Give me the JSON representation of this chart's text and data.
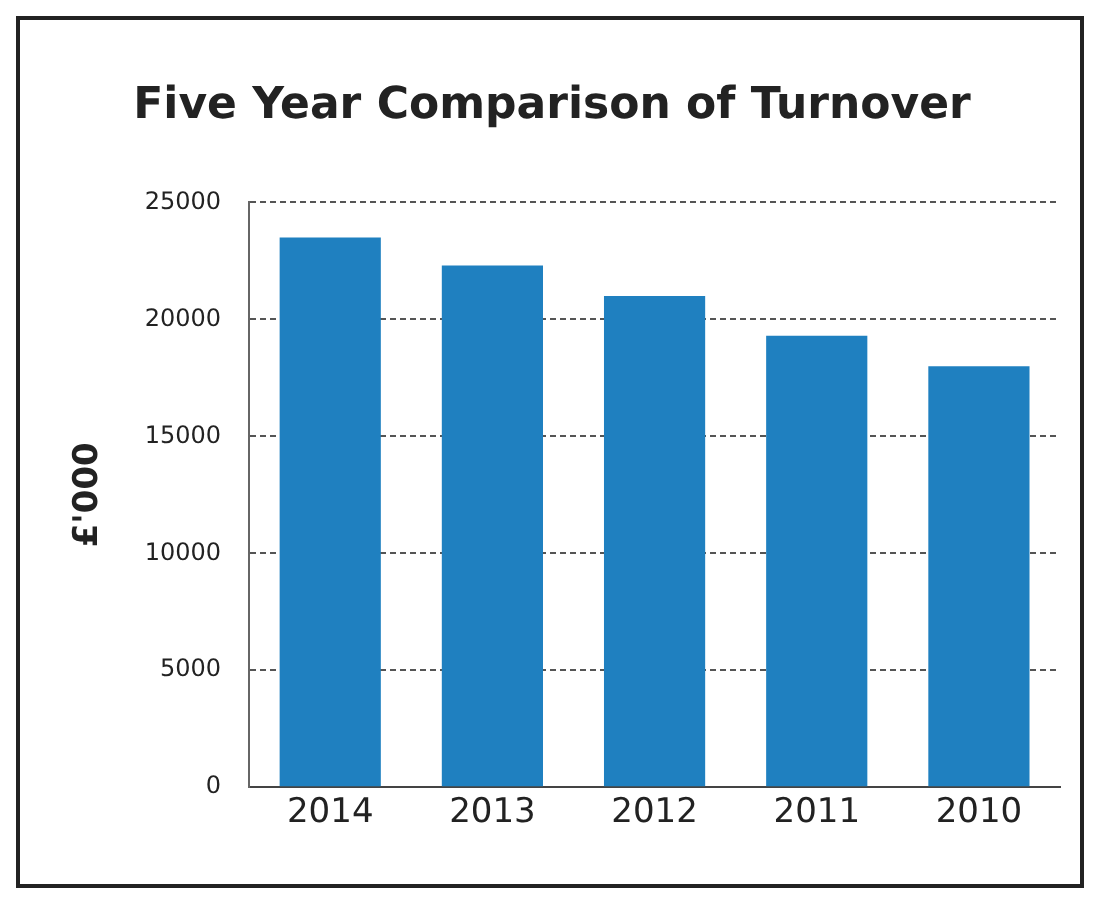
{
  "chart_data": {
    "type": "bar",
    "title": "Five Year Comparison of Turnover",
    "ylabel": "£'000",
    "categories": [
      "2014",
      "2013",
      "2012",
      "2011",
      "2010"
    ],
    "values": [
      23500,
      22300,
      21000,
      19300,
      18000
    ],
    "color": "#1f80c0",
    "ylim": [
      0,
      25000
    ],
    "yticks": [
      0,
      5000,
      10000,
      15000,
      20000,
      25000
    ],
    "grid": "y",
    "legend": false
  }
}
